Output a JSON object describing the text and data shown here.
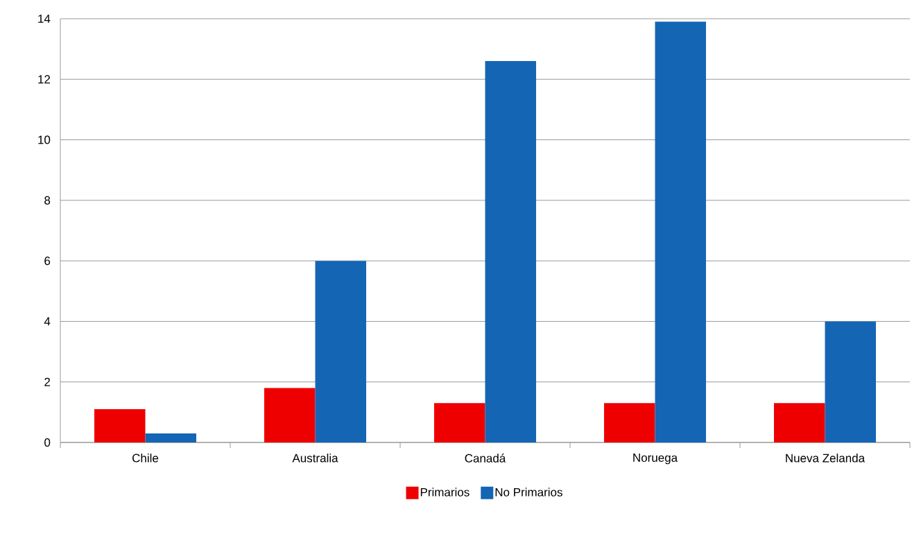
{
  "chart_data": {
    "type": "bar",
    "categories": [
      "Chile",
      "Australia",
      "Canadá",
      "Noruega",
      "Nueva Zelanda"
    ],
    "series": [
      {
        "name": "Primarios",
        "color": "#ee0000",
        "values": [
          1.1,
          1.8,
          1.3,
          1.3,
          1.3
        ]
      },
      {
        "name": "No Primarios",
        "color": "#1565b5",
        "values": [
          0.3,
          6.0,
          12.6,
          13.9,
          4.0
        ]
      }
    ],
    "ylim": [
      0,
      14
    ],
    "yticks": [
      0,
      2,
      4,
      6,
      8,
      10,
      12,
      14
    ],
    "grid": "y",
    "legend": "bottom"
  }
}
